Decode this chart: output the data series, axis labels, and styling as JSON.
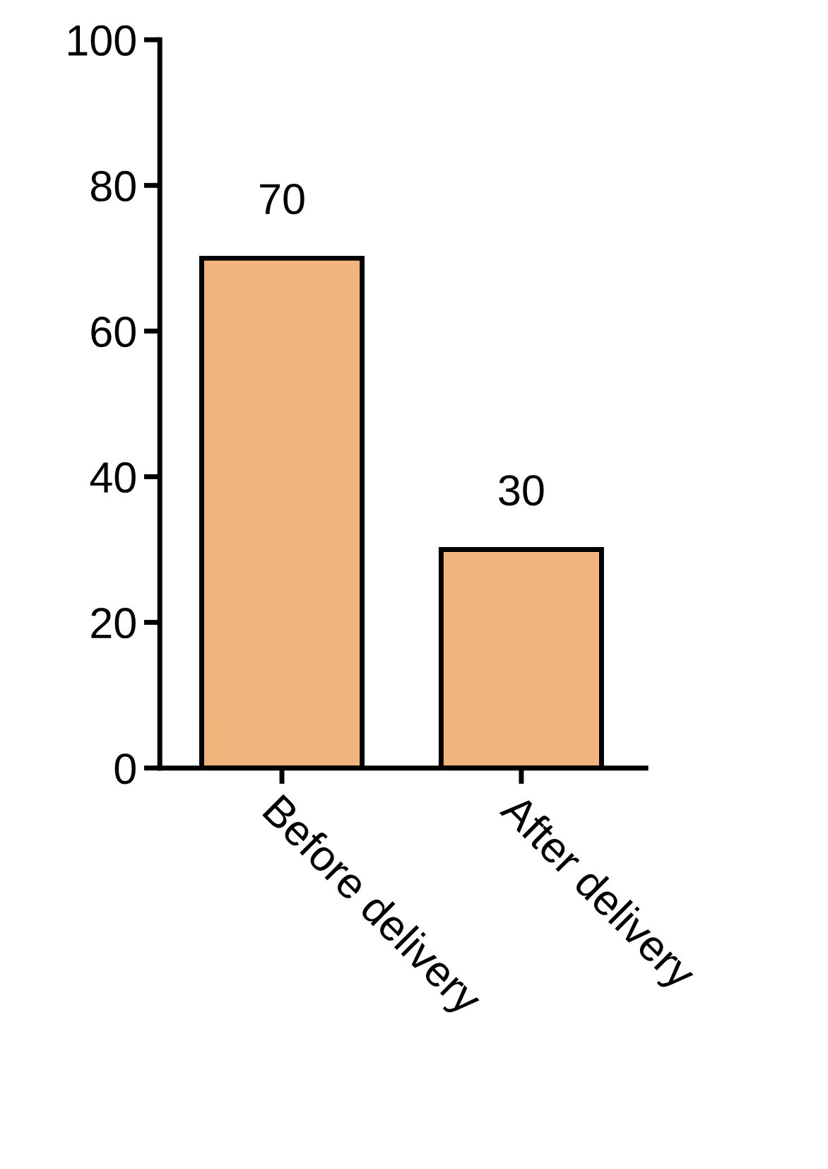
{
  "chart_data": {
    "type": "bar",
    "categories": [
      "Before delivery",
      "After delivery"
    ],
    "values": [
      70,
      30
    ],
    "color": "#f0b47c",
    "ylim": [
      0,
      100
    ],
    "yticks": [
      0,
      20,
      40,
      60,
      80,
      100
    ],
    "data_labels": true,
    "grid": false,
    "legend": false
  }
}
